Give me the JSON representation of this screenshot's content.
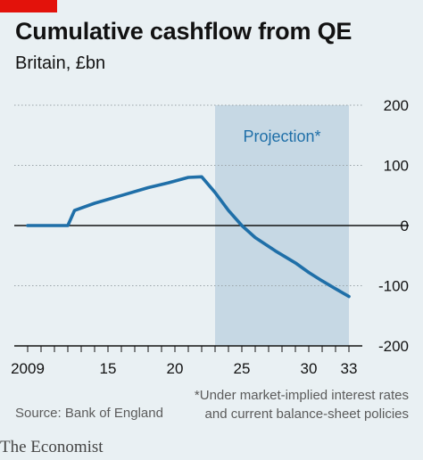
{
  "header": {
    "title": "Cumulative cashflow from QE",
    "subtitle": "Britain, £bn"
  },
  "colors": {
    "accent_red": "#e3120b",
    "background": "#e9f0f3",
    "line": "#1f6fa8",
    "projection_band": "#c6d8e4"
  },
  "footer": {
    "source": "Source: Bank of England",
    "footnote_line1": "*Under market-implied interest rates",
    "footnote_line2": "and current balance-sheet policies",
    "brand": "The Economist"
  },
  "chart_data": {
    "type": "line",
    "title": "Cumulative cashflow from QE",
    "subtitle": "Britain, £bn",
    "xlabel": "",
    "ylabel": "",
    "xlim": [
      2008,
      2034
    ],
    "ylim": [
      -200,
      200
    ],
    "x_ticks": [
      {
        "value": 2009,
        "label": "2009"
      },
      {
        "value": 2010
      },
      {
        "value": 2011
      },
      {
        "value": 2012
      },
      {
        "value": 2013
      },
      {
        "value": 2014
      },
      {
        "value": 2015,
        "label": "15"
      },
      {
        "value": 2016
      },
      {
        "value": 2017
      },
      {
        "value": 2018
      },
      {
        "value": 2019
      },
      {
        "value": 2020,
        "label": "20"
      },
      {
        "value": 2021
      },
      {
        "value": 2022
      },
      {
        "value": 2023
      },
      {
        "value": 2024
      },
      {
        "value": 2025,
        "label": "25"
      },
      {
        "value": 2026
      },
      {
        "value": 2027
      },
      {
        "value": 2028
      },
      {
        "value": 2029
      },
      {
        "value": 2030,
        "label": "30"
      },
      {
        "value": 2031
      },
      {
        "value": 2032
      },
      {
        "value": 2033,
        "label": "33"
      }
    ],
    "y_ticks": [
      {
        "value": 200,
        "label": "200"
      },
      {
        "value": 100,
        "label": "100"
      },
      {
        "value": 0,
        "label": "0"
      },
      {
        "value": -100,
        "label": "-100"
      },
      {
        "value": -200,
        "label": "-200"
      }
    ],
    "projection": {
      "from": 2023,
      "to": 2033,
      "label": "Projection*"
    },
    "series": [
      {
        "x": [
          2009,
          2010,
          2011,
          2012,
          2012.5,
          2014,
          2016,
          2018,
          2019.5,
          2021,
          2022,
          2023,
          2024,
          2025,
          2026,
          2027.5,
          2029,
          2030,
          2031,
          2032,
          2033
        ],
        "y": [
          0,
          0,
          0,
          0,
          25,
          37,
          50,
          63,
          71,
          80,
          81,
          55,
          25,
          0,
          -20,
          -42,
          -62,
          -78,
          -92,
          -105,
          -118
        ]
      }
    ],
    "grid": true,
    "legend": "none"
  }
}
